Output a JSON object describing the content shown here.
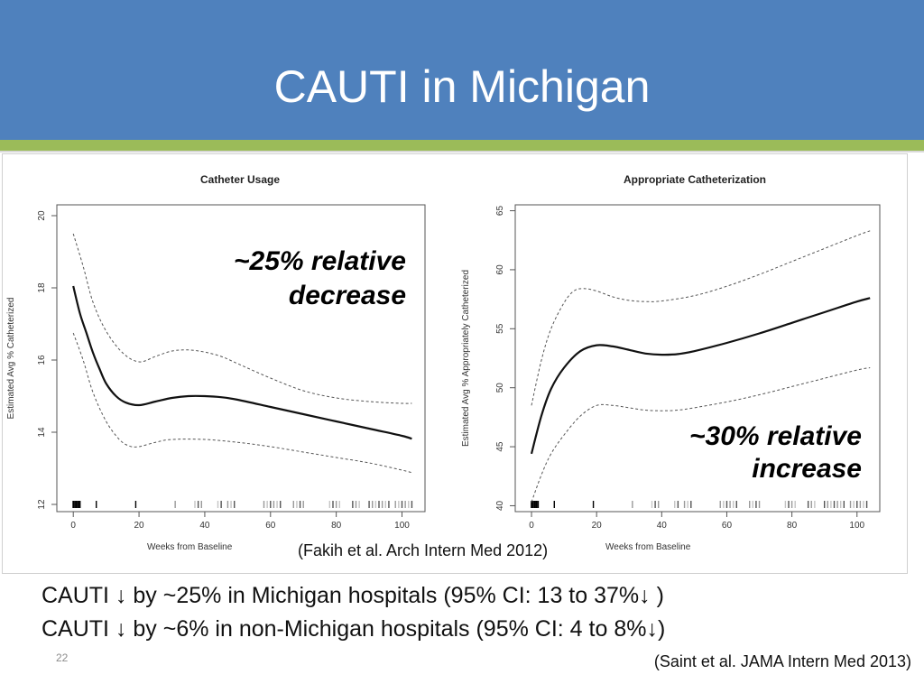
{
  "slide": {
    "title": "CAUTI in Michigan",
    "figure_citation": "(Fakih et al. Arch Intern Med  2012)",
    "bullets": [
      "CAUTI ↓ by ~25% in Michigan hospitals (95% CI: 13 to 37%↓ )",
      "CAUTI ↓ by ~6% in non-Michigan hospitals (95% CI: 4 to 8%↓)"
    ],
    "slide_number": "22",
    "bottom_citation": "(Saint et al. JAMA Intern Med 2013)"
  },
  "colors": {
    "header": "#4f81bd",
    "accent_stripe": "#9bbb59"
  },
  "chart_data": [
    {
      "type": "line",
      "title": "Catheter Usage",
      "xlabel": "Weeks from Baseline",
      "ylabel": "Estimated Avg % Catheterized",
      "xlim": [
        -5,
        107
      ],
      "ylim": [
        11.8,
        20.3
      ],
      "xticks": [
        0,
        20,
        40,
        60,
        80,
        100
      ],
      "yticks": [
        12,
        14,
        16,
        18,
        20
      ],
      "annotation": [
        "~25% relative",
        "decrease"
      ],
      "series": [
        {
          "role": "estimate",
          "x": [
            0,
            2,
            4,
            6,
            8,
            10,
            13,
            16,
            20,
            25,
            30,
            35,
            40,
            45,
            50,
            60,
            70,
            80,
            90,
            100,
            103
          ],
          "y": [
            18.05,
            17.3,
            16.75,
            16.2,
            15.75,
            15.35,
            15.0,
            14.82,
            14.75,
            14.85,
            14.95,
            15.0,
            15.0,
            14.97,
            14.9,
            14.7,
            14.5,
            14.3,
            14.1,
            13.9,
            13.82
          ]
        },
        {
          "role": "upper",
          "x": [
            0,
            3,
            6,
            10,
            15,
            20,
            25,
            30,
            35,
            40,
            45,
            50,
            60,
            70,
            80,
            90,
            100,
            103
          ],
          "y": [
            19.5,
            18.6,
            17.6,
            16.8,
            16.2,
            15.95,
            16.1,
            16.25,
            16.28,
            16.22,
            16.1,
            15.9,
            15.5,
            15.15,
            14.95,
            14.85,
            14.8,
            14.8
          ]
        },
        {
          "role": "lower",
          "x": [
            0,
            3,
            6,
            10,
            14,
            17,
            20,
            25,
            30,
            40,
            50,
            60,
            70,
            80,
            90,
            100,
            103
          ],
          "y": [
            16.75,
            16.0,
            15.1,
            14.3,
            13.8,
            13.62,
            13.6,
            13.72,
            13.8,
            13.8,
            13.72,
            13.6,
            13.45,
            13.3,
            13.15,
            12.95,
            12.88
          ]
        }
      ],
      "rug": [
        0,
        0.5,
        1,
        1.5,
        2,
        7,
        19,
        31,
        37,
        38,
        39,
        44,
        45,
        47,
        48,
        49,
        58,
        59,
        60,
        61,
        62,
        63,
        67,
        68,
        69,
        70,
        78,
        79,
        80,
        81,
        85,
        86,
        87,
        90,
        91,
        92,
        93,
        94,
        95,
        96,
        98,
        99,
        100,
        101,
        102,
        103
      ]
    },
    {
      "type": "line",
      "title": "Appropriate Catheterization",
      "xlabel": "Weeks from Baseline",
      "ylabel": "Estimated Avg % Appropriately Catheterized",
      "xlim": [
        -5,
        107
      ],
      "ylim": [
        39.5,
        65.5
      ],
      "xticks": [
        0,
        20,
        40,
        60,
        80,
        100
      ],
      "yticks": [
        40,
        45,
        50,
        55,
        60,
        65
      ],
      "annotation": [
        "~30% relative",
        "increase"
      ],
      "series": [
        {
          "role": "estimate",
          "x": [
            0,
            3,
            6,
            10,
            15,
            20,
            25,
            30,
            35,
            40,
            45,
            50,
            60,
            70,
            80,
            90,
            100,
            104
          ],
          "y": [
            44.4,
            47.6,
            49.9,
            51.7,
            53.1,
            53.6,
            53.5,
            53.2,
            52.9,
            52.8,
            52.85,
            53.1,
            53.8,
            54.6,
            55.5,
            56.4,
            57.3,
            57.6
          ]
        },
        {
          "role": "upper",
          "x": [
            0,
            3,
            6,
            10,
            13,
            16,
            20,
            25,
            30,
            35,
            40,
            50,
            60,
            70,
            80,
            90,
            100,
            104
          ],
          "y": [
            48.5,
            52.3,
            55.0,
            57.2,
            58.2,
            58.4,
            58.2,
            57.7,
            57.4,
            57.3,
            57.35,
            57.8,
            58.6,
            59.6,
            60.7,
            61.8,
            62.9,
            63.3
          ]
        },
        {
          "role": "lower",
          "x": [
            0,
            3,
            6,
            10,
            15,
            20,
            25,
            30,
            35,
            40,
            45,
            50,
            60,
            70,
            80,
            90,
            100,
            104
          ],
          "y": [
            40.3,
            42.6,
            44.4,
            46.0,
            47.6,
            48.5,
            48.5,
            48.3,
            48.1,
            48.05,
            48.1,
            48.3,
            48.8,
            49.4,
            50.1,
            50.8,
            51.5,
            51.7
          ]
        }
      ],
      "rug": [
        0,
        0.5,
        1,
        1.5,
        2,
        7,
        19,
        31,
        37,
        38,
        39,
        44,
        45,
        47,
        48,
        49,
        58,
        59,
        60,
        61,
        62,
        63,
        67,
        68,
        69,
        70,
        78,
        79,
        80,
        81,
        85,
        86,
        87,
        90,
        91,
        92,
        93,
        94,
        95,
        96,
        98,
        99,
        100,
        101,
        102,
        103
      ]
    }
  ]
}
